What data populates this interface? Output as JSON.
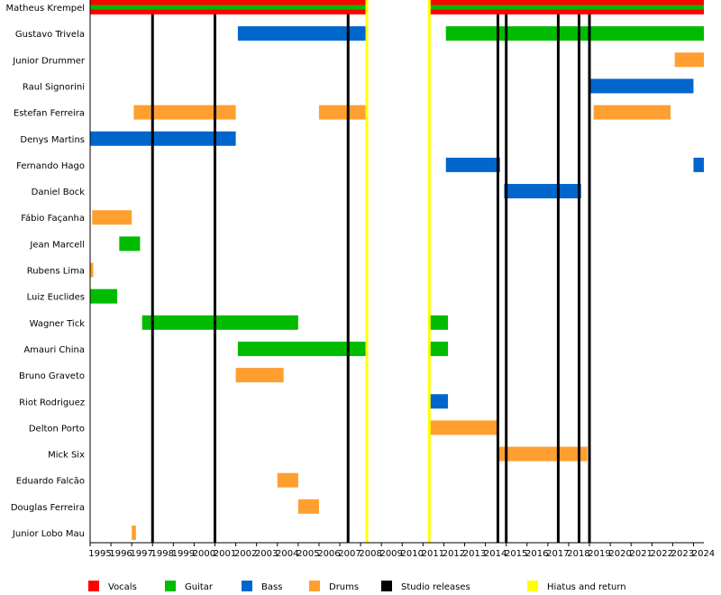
{
  "chart_data": {
    "type": "timeline",
    "title": "",
    "x_range": [
      1995,
      2024.5
    ],
    "ticks": [
      1995,
      1996,
      1997,
      1998,
      1999,
      2000,
      2001,
      2002,
      2003,
      2004,
      2005,
      2006,
      2007,
      2008,
      2009,
      2010,
      2011,
      2012,
      2013,
      2014,
      2015,
      2016,
      2017,
      2018,
      2019,
      2020,
      2021,
      2022,
      2023,
      2024
    ],
    "roles": {
      "vocals": {
        "label": "Vocals",
        "color": "#ff0000"
      },
      "guitar": {
        "label": "Guitar",
        "color": "#00bb00"
      },
      "bass": {
        "label": "Bass",
        "color": "#0066cc"
      },
      "drums": {
        "label": "Drums",
        "color": "#ff9f30"
      }
    },
    "members": [
      {
        "name": "Matheus Krempel",
        "periods": [
          {
            "role": "vocals",
            "start": 1995,
            "end": 2008.3
          },
          {
            "role": "guitar",
            "start": 1995,
            "end": 2008.3,
            "sub": true
          },
          {
            "role": "vocals",
            "start": 2011.3,
            "end": 2024.5
          },
          {
            "role": "guitar",
            "start": 2011.3,
            "end": 2024.5,
            "sub": true
          }
        ]
      },
      {
        "name": "Gustavo Trivela",
        "periods": [
          {
            "role": "bass",
            "start": 2002.1,
            "end": 2008.3
          },
          {
            "role": "guitar",
            "start": 2012.1,
            "end": 2024.5
          }
        ]
      },
      {
        "name": "Junior Drummer",
        "periods": [
          {
            "role": "drums",
            "start": 2023.1,
            "end": 2024.5
          }
        ]
      },
      {
        "name": "Raul Signorini",
        "periods": [
          {
            "role": "bass",
            "start": 2019.0,
            "end": 2024.0
          }
        ]
      },
      {
        "name": "Estefan Ferreira",
        "periods": [
          {
            "role": "drums",
            "start": 1997.1,
            "end": 2002.0
          },
          {
            "role": "drums",
            "start": 2006.0,
            "end": 2008.3
          },
          {
            "role": "drums",
            "start": 2019.2,
            "end": 2022.9
          }
        ]
      },
      {
        "name": "Denys Martins",
        "periods": [
          {
            "role": "bass",
            "start": 1995,
            "end": 2002.0
          }
        ]
      },
      {
        "name": "Fernando Hago",
        "periods": [
          {
            "role": "bass",
            "start": 2012.1,
            "end": 2014.7
          },
          {
            "role": "bass",
            "start": 2024.0,
            "end": 2024.5
          }
        ]
      },
      {
        "name": "Daniel Bock",
        "periods": [
          {
            "role": "bass",
            "start": 2014.9,
            "end": 2018.6
          }
        ]
      },
      {
        "name": "Fábio Façanha",
        "periods": [
          {
            "role": "drums",
            "start": 1995.1,
            "end": 1997.0
          }
        ]
      },
      {
        "name": "Jean Marcell",
        "periods": [
          {
            "role": "guitar",
            "start": 1996.4,
            "end": 1997.4
          }
        ]
      },
      {
        "name": "Rubens Lima",
        "periods": [
          {
            "role": "drums",
            "start": 1995,
            "end": 1995.15
          }
        ]
      },
      {
        "name": "Luiz Euclides",
        "periods": [
          {
            "role": "guitar",
            "start": 1995,
            "end": 1996.3
          }
        ]
      },
      {
        "name": "Wagner Tick",
        "periods": [
          {
            "role": "guitar",
            "start": 1997.5,
            "end": 2005.0
          },
          {
            "role": "guitar",
            "start": 2011.3,
            "end": 2012.2
          }
        ]
      },
      {
        "name": "Amauri China",
        "periods": [
          {
            "role": "guitar",
            "start": 2002.1,
            "end": 2008.3
          },
          {
            "role": "guitar",
            "start": 2011.3,
            "end": 2012.2
          }
        ]
      },
      {
        "name": "Bruno Graveto",
        "periods": [
          {
            "role": "drums",
            "start": 2002.0,
            "end": 2004.3
          }
        ]
      },
      {
        "name": "Riot Rodriguez",
        "periods": [
          {
            "role": "bass",
            "start": 2011.3,
            "end": 2012.2
          }
        ]
      },
      {
        "name": "Delton Porto",
        "periods": [
          {
            "role": "drums",
            "start": 2011.3,
            "end": 2014.6
          }
        ]
      },
      {
        "name": "Mick Six",
        "periods": [
          {
            "role": "drums",
            "start": 2014.6,
            "end": 2018.9
          }
        ]
      },
      {
        "name": "Eduardo Falcão",
        "periods": [
          {
            "role": "drums",
            "start": 2004.0,
            "end": 2005.0
          }
        ]
      },
      {
        "name": "Douglas Ferreira",
        "periods": [
          {
            "role": "drums",
            "start": 2005.0,
            "end": 2006.0
          }
        ]
      },
      {
        "name": "Junior Lobo Mau",
        "periods": [
          {
            "role": "drums",
            "start": 1997.0,
            "end": 1997.2
          }
        ]
      }
    ],
    "studio_releases": [
      1998.0,
      2001.0,
      2007.4,
      2014.6,
      2015.0,
      2017.5,
      2018.5,
      2019.0
    ],
    "hiatus_lines": [
      2008.3,
      2011.3
    ],
    "legend": [
      {
        "label": "Vocals",
        "color": "#ff0000"
      },
      {
        "label": "Guitar",
        "color": "#00bb00"
      },
      {
        "label": "Bass",
        "color": "#0066cc"
      },
      {
        "label": "Drums",
        "color": "#ff9f30"
      },
      {
        "label": "Studio releases",
        "color": "#000000"
      },
      {
        "label": "Hiatus and return",
        "color": "#ffff00"
      }
    ]
  }
}
